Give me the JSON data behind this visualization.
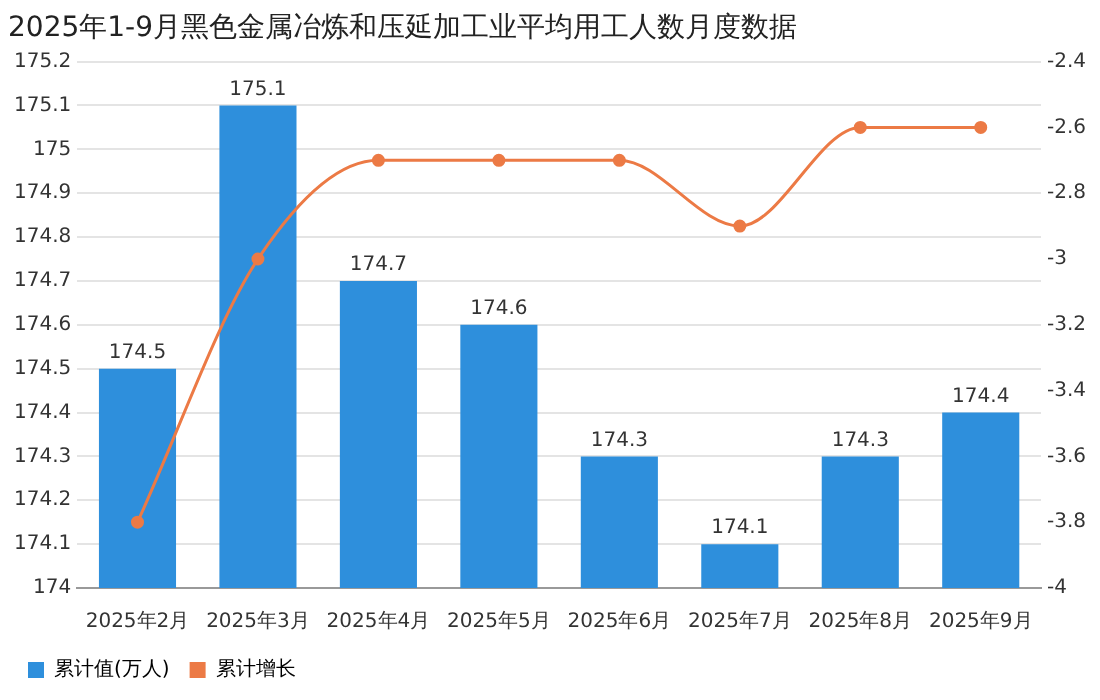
{
  "chart_data": {
    "type": "bar",
    "title": "2025年1-9月黑色金属冶炼和压延加工业平均用工人数月度数据",
    "categories": [
      "2025年2月",
      "2025年3月",
      "2025年4月",
      "2025年5月",
      "2025年6月",
      "2025年7月",
      "2025年8月",
      "2025年9月"
    ],
    "series": [
      {
        "name": "累计值(万人)",
        "color": "#2e8fdc",
        "values": [
          174.5,
          175.1,
          174.7,
          174.6,
          174.3,
          174.1,
          174.3,
          174.4
        ],
        "value_labels": [
          "174.5",
          "175.1",
          "174.7",
          "174.6",
          "174.3",
          "174.1",
          "174.3",
          "174.4"
        ]
      },
      {
        "name": "累计增长",
        "type": "line",
        "axis": "y2",
        "color": "#ec7a45",
        "values": [
          -3.8,
          -3.0,
          -2.7,
          -2.7,
          -2.7,
          -2.9,
          -2.6,
          -2.6
        ]
      }
    ],
    "ylim": [
      174,
      175.2
    ],
    "yticks": [
      174,
      174.1,
      174.2,
      174.3,
      174.4,
      174.5,
      174.6,
      174.7,
      174.8,
      174.9,
      175,
      175.1,
      175.2
    ],
    "y2lim": [
      -4,
      -2.4
    ],
    "y2ticks": [
      -4,
      -3.8,
      -3.6,
      -3.4,
      -3.2,
      -3,
      -2.8,
      -2.6,
      -2.4
    ],
    "grid": "y",
    "legend": "bottom left",
    "marker": "circle",
    "line_style": "solid"
  }
}
